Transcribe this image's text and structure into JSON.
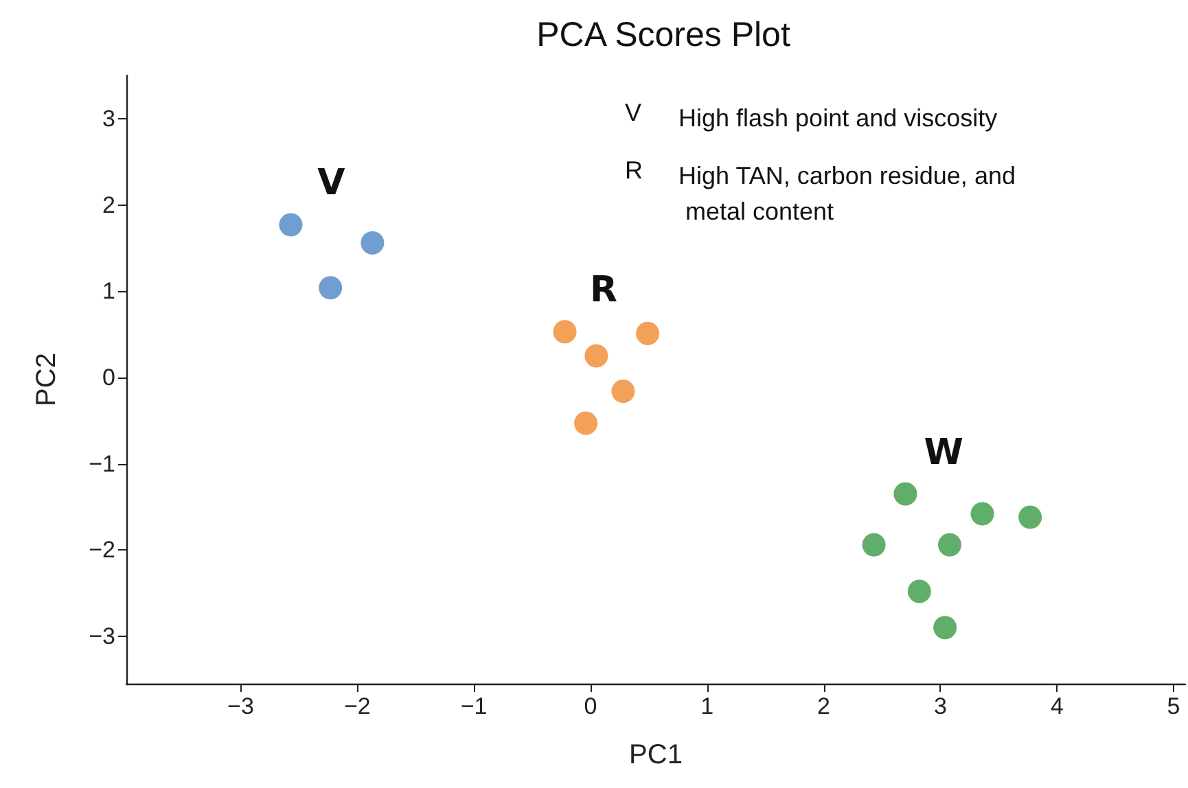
{
  "chart_data": {
    "type": "scatter",
    "title": "PCA Scores Plot",
    "xlabel": "PC1",
    "ylabel": "PC2",
    "xlim": [
      -3.98,
      5.1
    ],
    "ylim": [
      -3.55,
      3.5
    ],
    "xticks": [
      -3,
      -2,
      -1,
      0,
      1,
      2,
      3,
      4,
      5
    ],
    "yticks": [
      -3,
      -2,
      -1,
      0,
      1,
      2,
      3
    ],
    "grid": false,
    "legend": false,
    "marker": "circle",
    "series": [
      {
        "name": "V",
        "color": "#4e86c6",
        "x": [
          -2.57,
          -1.87,
          -2.23
        ],
        "values": [
          1.77,
          1.56,
          1.04
        ]
      },
      {
        "name": "R",
        "color": "#f0882e",
        "x": [
          -0.22,
          0.49,
          0.05,
          0.28,
          -0.04
        ],
        "values": [
          0.53,
          0.51,
          0.25,
          -0.16,
          -0.53
        ]
      },
      {
        "name": "W",
        "color": "#3a9a45",
        "x": [
          2.7,
          3.36,
          3.77,
          2.43,
          3.08,
          2.82,
          3.04
        ],
        "values": [
          -1.35,
          -1.58,
          -1.62,
          -1.94,
          -1.94,
          -2.48,
          -2.9
        ]
      }
    ],
    "annotations": [
      "V",
      "High flash point and viscosity",
      "R",
      "High TAN, carbon residue, and metal content"
    ]
  }
}
